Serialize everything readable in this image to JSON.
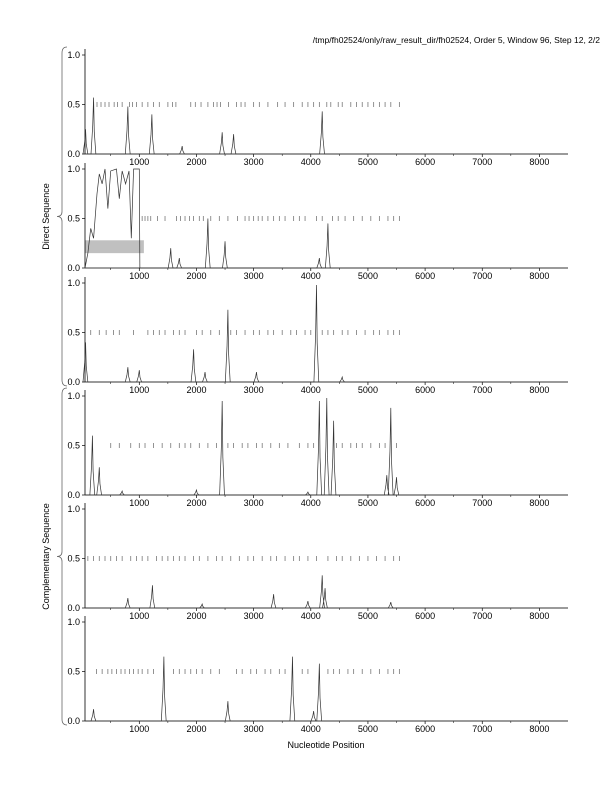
{
  "header": "/tmp/fh02524/only/raw_result_dir/fh02524, Order 5, Window 96, Step 12, 2/2",
  "chart_data": {
    "type": "line",
    "xlabel": "Nucleotide Position",
    "xlim": [
      50,
      8500
    ],
    "ylim": [
      0,
      1
    ],
    "xticks": [
      1000,
      2000,
      3000,
      4000,
      5000,
      6000,
      7000,
      8000
    ],
    "xtick_labels": [
      "1000",
      "2000",
      "3000",
      "4000",
      "5000",
      "6000",
      "7000",
      "8000"
    ],
    "yticks": [
      0,
      0.5,
      1
    ],
    "ytick_labels": [
      "0.0",
      "0.5",
      "1.0"
    ],
    "groups": [
      {
        "label": "Direct Sequence",
        "panels": [
          0,
          1,
          2
        ]
      },
      {
        "label": "Complementary Sequence",
        "panels": [
          3,
          4,
          5
        ]
      }
    ],
    "panels": [
      {
        "peaks": [
          [
            60,
            0.25
          ],
          [
            200,
            0.57
          ],
          [
            800,
            0.48
          ],
          [
            1220,
            0.4
          ],
          [
            1750,
            0.08
          ],
          [
            2450,
            0.22
          ],
          [
            2650,
            0.2
          ],
          [
            4200,
            0.43
          ]
        ],
        "marks": [
          200,
          260,
          330,
          400,
          470,
          560,
          620,
          700,
          830,
          880,
          950,
          1050,
          1150,
          1250,
          1350,
          1500,
          1580,
          1640,
          1900,
          1980,
          2080,
          2200,
          2300,
          2360,
          2420,
          2560,
          2700,
          2780,
          2850,
          3000,
          3100,
          3250,
          3420,
          3550,
          3700,
          3850,
          3950,
          4050,
          4150,
          4280,
          4350,
          4480,
          4550,
          4700,
          4800,
          4900,
          5000,
          5100,
          5200,
          5300,
          5400,
          5550
        ]
      },
      {
        "points": [
          [
            50,
            0
          ],
          [
            100,
            0.15
          ],
          [
            150,
            0.4
          ],
          [
            200,
            0.3
          ],
          [
            260,
            0.75
          ],
          [
            300,
            0.95
          ],
          [
            350,
            0.85
          ],
          [
            400,
            1
          ],
          [
            450,
            0.6
          ],
          [
            500,
            0.98
          ],
          [
            600,
            1
          ],
          [
            650,
            0.7
          ],
          [
            700,
            0.98
          ],
          [
            760,
            0.85
          ],
          [
            820,
            0.98
          ],
          [
            860,
            0.3
          ],
          [
            900,
            1
          ],
          [
            1000,
            1
          ],
          [
            1010,
            0
          ]
        ],
        "peaks": [
          [
            1550,
            0.2
          ],
          [
            1700,
            0.1
          ],
          [
            2200,
            0.5
          ],
          [
            2500,
            0.27
          ],
          [
            4150,
            0.1
          ],
          [
            4300,
            0.45
          ]
        ],
        "highlight": [
          50,
          1080,
          0.15,
          0.28
        ],
        "marks": [
          1050,
          1100,
          1150,
          1200,
          1320,
          1450,
          1650,
          1720,
          1800,
          1880,
          1950,
          2050,
          2120,
          2250,
          2400,
          2550,
          2720,
          2850,
          2920,
          3000,
          3080,
          3150,
          3250,
          3350,
          3450,
          3550,
          3700,
          3800,
          3900,
          4100,
          4200,
          4380,
          4480,
          4600,
          4750,
          4900,
          5050,
          5200,
          5350,
          5450,
          5550
        ]
      },
      {
        "peaks": [
          [
            60,
            0.4
          ],
          [
            800,
            0.15
          ],
          [
            1000,
            0.12
          ],
          [
            1950,
            0.33
          ],
          [
            2150,
            0.1
          ],
          [
            2550,
            0.73
          ],
          [
            3050,
            0.1
          ],
          [
            4100,
            0.98
          ],
          [
            4550,
            0.05
          ]
        ],
        "marks": [
          150,
          300,
          420,
          550,
          650,
          900,
          1150,
          1250,
          1350,
          1450,
          1600,
          1700,
          1800,
          2000,
          2100,
          2250,
          2400,
          2600,
          2700,
          2850,
          3000,
          3100,
          3250,
          3350,
          3500,
          3650,
          3750,
          3900,
          4000,
          4200,
          4300,
          4400,
          4550,
          4650,
          4800,
          4950,
          5100,
          5200,
          5350,
          5450,
          5550
        ]
      },
      {
        "peaks": [
          [
            180,
            0.6
          ],
          [
            300,
            0.28
          ],
          [
            700,
            0.04
          ],
          [
            2000,
            0.05
          ],
          [
            2450,
            0.95
          ],
          [
            3950,
            0.03
          ],
          [
            4150,
            0.95
          ],
          [
            4280,
            0.98
          ],
          [
            4400,
            0.75
          ],
          [
            5330,
            0.2
          ],
          [
            5400,
            0.88
          ],
          [
            5500,
            0.18
          ]
        ],
        "marks": [
          500,
          650,
          850,
          1000,
          1100,
          1250,
          1400,
          1550,
          1700,
          1800,
          1900,
          2050,
          2200,
          2350,
          2550,
          2650,
          2800,
          2900,
          3050,
          3150,
          3300,
          3450,
          3600,
          3800,
          3950,
          4050,
          4450,
          4550,
          4700,
          4800,
          4900,
          5050,
          5200,
          5300,
          5500
        ]
      },
      {
        "peaks": [
          [
            800,
            0.1
          ],
          [
            1230,
            0.23
          ],
          [
            2100,
            0.04
          ],
          [
            3350,
            0.14
          ],
          [
            3950,
            0.07
          ],
          [
            4200,
            0.33
          ],
          [
            4250,
            0.2
          ],
          [
            5400,
            0.06
          ]
        ],
        "marks": [
          100,
          200,
          300,
          400,
          500,
          600,
          700,
          850,
          950,
          1050,
          1150,
          1300,
          1400,
          1500,
          1600,
          1700,
          1800,
          1950,
          2050,
          2200,
          2350,
          2450,
          2600,
          2750,
          2900,
          3000,
          3150,
          3300,
          3400,
          3550,
          3700,
          3800,
          3950,
          4100,
          4300,
          4450,
          4550,
          4700,
          4850,
          5000,
          5150,
          5300,
          5450,
          5550
        ]
      },
      {
        "peaks": [
          [
            200,
            0.12
          ],
          [
            1430,
            0.65
          ],
          [
            2550,
            0.2
          ],
          [
            3680,
            0.65
          ],
          [
            4050,
            0.1
          ],
          [
            4150,
            0.58
          ]
        ],
        "marks": [
          250,
          350,
          450,
          520,
          600,
          680,
          750,
          830,
          900,
          980,
          1050,
          1150,
          1250,
          1600,
          1700,
          1800,
          1900,
          2000,
          2100,
          2250,
          2400,
          2700,
          2800,
          2950,
          3050,
          3200,
          3300,
          3450,
          3550,
          3850,
          3950,
          4300,
          4400,
          4500,
          4650,
          4750,
          4900,
          5050,
          5200,
          5350,
          5450,
          5550
        ]
      }
    ]
  }
}
